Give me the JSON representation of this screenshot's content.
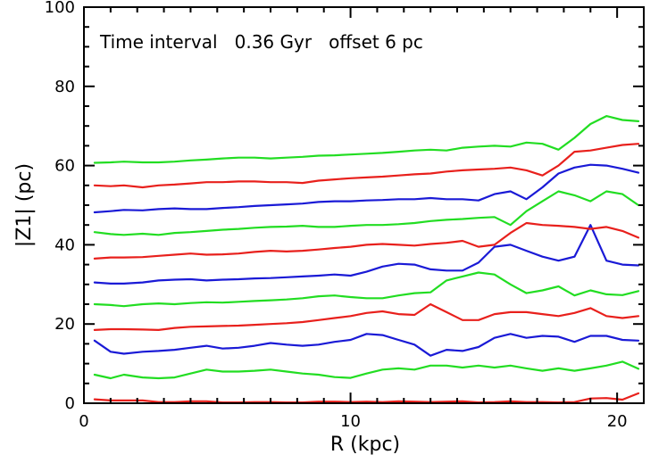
{
  "chart_data": {
    "type": "line",
    "annotation": "Time interval   0.36 Gyr   offset 6 pc",
    "xlabel": "R (kpc)",
    "ylabel": "|Z1| (pc)",
    "xlim": [
      0,
      21
    ],
    "ylim": [
      0,
      100
    ],
    "xticks_major": [
      0,
      10,
      20
    ],
    "xticks_minor": [
      1,
      2,
      3,
      4,
      5,
      6,
      7,
      8,
      9,
      11,
      12,
      13,
      14,
      15,
      16,
      17,
      18,
      19,
      21
    ],
    "yticks_major": [
      0,
      20,
      40,
      60,
      80,
      100
    ],
    "yticks_minor": [
      5,
      10,
      15,
      25,
      30,
      35,
      45,
      50,
      55,
      65,
      70,
      75,
      85,
      90,
      95
    ],
    "grid": false,
    "legend": "none",
    "colors": {
      "red": "#e8201c",
      "green": "#22dd22",
      "blue": "#1a1ad6"
    },
    "x": [
      0.4,
      1.0,
      1.5,
      2.2,
      2.8,
      3.4,
      4.0,
      4.6,
      5.2,
      5.8,
      6.4,
      7.0,
      7.6,
      8.2,
      8.8,
      9.4,
      10.0,
      10.6,
      11.2,
      11.8,
      12.4,
      13.0,
      13.6,
      14.2,
      14.8,
      15.4,
      16.0,
      16.6,
      17.2,
      17.8,
      18.4,
      19.0,
      19.6,
      20.2,
      20.8
    ],
    "series": [
      {
        "color": "red",
        "values": [
          1.0,
          0.7,
          0.7,
          0.7,
          0.3,
          0.3,
          0.5,
          0.5,
          0.2,
          0.2,
          0.3,
          0.3,
          0.2,
          0.2,
          0.4,
          0.4,
          0.3,
          0.4,
          0.3,
          0.5,
          0.4,
          0.3,
          0.4,
          0.5,
          0.2,
          0.3,
          0.5,
          0.3,
          0.3,
          0.2,
          0.3,
          1.2,
          1.3,
          0.9,
          2.5
        ]
      },
      {
        "color": "green",
        "values": [
          7.2,
          6.3,
          7.2,
          6.5,
          6.3,
          6.5,
          7.5,
          8.5,
          8.0,
          8.0,
          8.2,
          8.5,
          8.0,
          7.5,
          7.2,
          6.6,
          6.4,
          7.5,
          8.5,
          8.8,
          8.5,
          9.5,
          9.5,
          9.0,
          9.5,
          9.0,
          9.5,
          8.8,
          8.2,
          8.8,
          8.2,
          8.8,
          9.5,
          10.5,
          8.7
        ]
      },
      {
        "color": "blue",
        "values": [
          15.8,
          13.0,
          12.5,
          13.0,
          13.2,
          13.5,
          14.0,
          14.5,
          13.8,
          14.0,
          14.5,
          15.2,
          14.8,
          14.5,
          14.8,
          15.5,
          16.0,
          17.5,
          17.2,
          16.0,
          14.8,
          12.0,
          13.5,
          13.2,
          14.2,
          16.5,
          17.5,
          16.5,
          17.0,
          16.8,
          15.5,
          17.0,
          17.0,
          16.0,
          15.8
        ]
      },
      {
        "color": "red",
        "values": [
          18.5,
          18.7,
          18.7,
          18.6,
          18.5,
          19.0,
          19.3,
          19.4,
          19.5,
          19.6,
          19.8,
          20.0,
          20.2,
          20.5,
          21.0,
          21.5,
          22.0,
          22.8,
          23.2,
          22.5,
          22.3,
          25.0,
          23.0,
          21.0,
          21.0,
          22.5,
          23.0,
          23.0,
          22.5,
          22.0,
          22.8,
          24.0,
          22.0,
          21.5,
          22.0
        ]
      },
      {
        "color": "green",
        "values": [
          25.0,
          24.8,
          24.5,
          25.0,
          25.2,
          25.0,
          25.3,
          25.5,
          25.4,
          25.6,
          25.8,
          26.0,
          26.2,
          26.5,
          27.0,
          27.2,
          26.8,
          26.5,
          26.5,
          27.2,
          27.8,
          28.0,
          31.0,
          32.0,
          33.0,
          32.5,
          30.0,
          27.8,
          28.5,
          29.5,
          27.2,
          28.5,
          27.5,
          27.3,
          28.3
        ]
      },
      {
        "color": "blue",
        "values": [
          30.5,
          30.2,
          30.2,
          30.5,
          31.0,
          31.2,
          31.3,
          31.0,
          31.2,
          31.3,
          31.5,
          31.6,
          31.8,
          32.0,
          32.2,
          32.5,
          32.2,
          33.2,
          34.5,
          35.2,
          35.0,
          33.8,
          33.5,
          33.5,
          35.5,
          39.5,
          40.0,
          38.5,
          37.0,
          36.0,
          37.0,
          45.0,
          36.0,
          35.0,
          34.8
        ]
      },
      {
        "color": "red",
        "values": [
          36.5,
          36.8,
          36.8,
          36.9,
          37.2,
          37.5,
          37.8,
          37.5,
          37.6,
          37.8,
          38.2,
          38.5,
          38.3,
          38.5,
          38.8,
          39.2,
          39.5,
          40.0,
          40.2,
          40.0,
          39.8,
          40.2,
          40.5,
          41.0,
          39.5,
          40.0,
          43.0,
          45.5,
          45.0,
          44.8,
          44.5,
          44.0,
          44.5,
          43.5,
          41.8
        ]
      },
      {
        "color": "green",
        "values": [
          43.2,
          42.7,
          42.5,
          42.8,
          42.5,
          43.0,
          43.2,
          43.5,
          43.8,
          44.0,
          44.3,
          44.5,
          44.6,
          44.8,
          44.5,
          44.5,
          44.8,
          45.0,
          45.0,
          45.2,
          45.5,
          46.0,
          46.3,
          46.5,
          46.8,
          47.0,
          45.0,
          48.5,
          51.0,
          53.5,
          52.5,
          51.0,
          53.5,
          52.8,
          50.0
        ]
      },
      {
        "color": "blue",
        "values": [
          48.2,
          48.5,
          48.8,
          48.7,
          49.0,
          49.2,
          49.0,
          49.0,
          49.3,
          49.5,
          49.8,
          50.0,
          50.2,
          50.4,
          50.8,
          51.0,
          51.0,
          51.2,
          51.3,
          51.5,
          51.5,
          51.8,
          51.5,
          51.5,
          51.2,
          52.8,
          53.5,
          51.5,
          54.5,
          58.0,
          59.5,
          60.2,
          60.0,
          59.2,
          58.2
        ]
      },
      {
        "color": "red",
        "values": [
          55.0,
          54.8,
          55.0,
          54.5,
          55.0,
          55.2,
          55.5,
          55.8,
          55.8,
          56.0,
          56.0,
          55.8,
          55.8,
          55.6,
          56.2,
          56.5,
          56.8,
          57.0,
          57.2,
          57.5,
          57.8,
          58.0,
          58.5,
          58.8,
          59.0,
          59.2,
          59.5,
          58.8,
          57.5,
          60.0,
          63.5,
          63.8,
          64.5,
          65.2,
          65.5
        ]
      },
      {
        "color": "green",
        "values": [
          60.7,
          60.8,
          61.0,
          60.8,
          60.8,
          61.0,
          61.3,
          61.5,
          61.8,
          62.0,
          62.0,
          61.8,
          62.0,
          62.2,
          62.5,
          62.6,
          62.8,
          63.0,
          63.2,
          63.5,
          63.8,
          64.0,
          63.8,
          64.5,
          64.8,
          65.0,
          64.8,
          65.8,
          65.5,
          64.0,
          67.0,
          70.5,
          72.5,
          71.5,
          71.2
        ]
      }
    ],
    "tick_labels_x": [
      "0",
      "10",
      "20"
    ],
    "tick_labels_y": [
      "0",
      "20",
      "40",
      "60",
      "80",
      "100"
    ]
  }
}
